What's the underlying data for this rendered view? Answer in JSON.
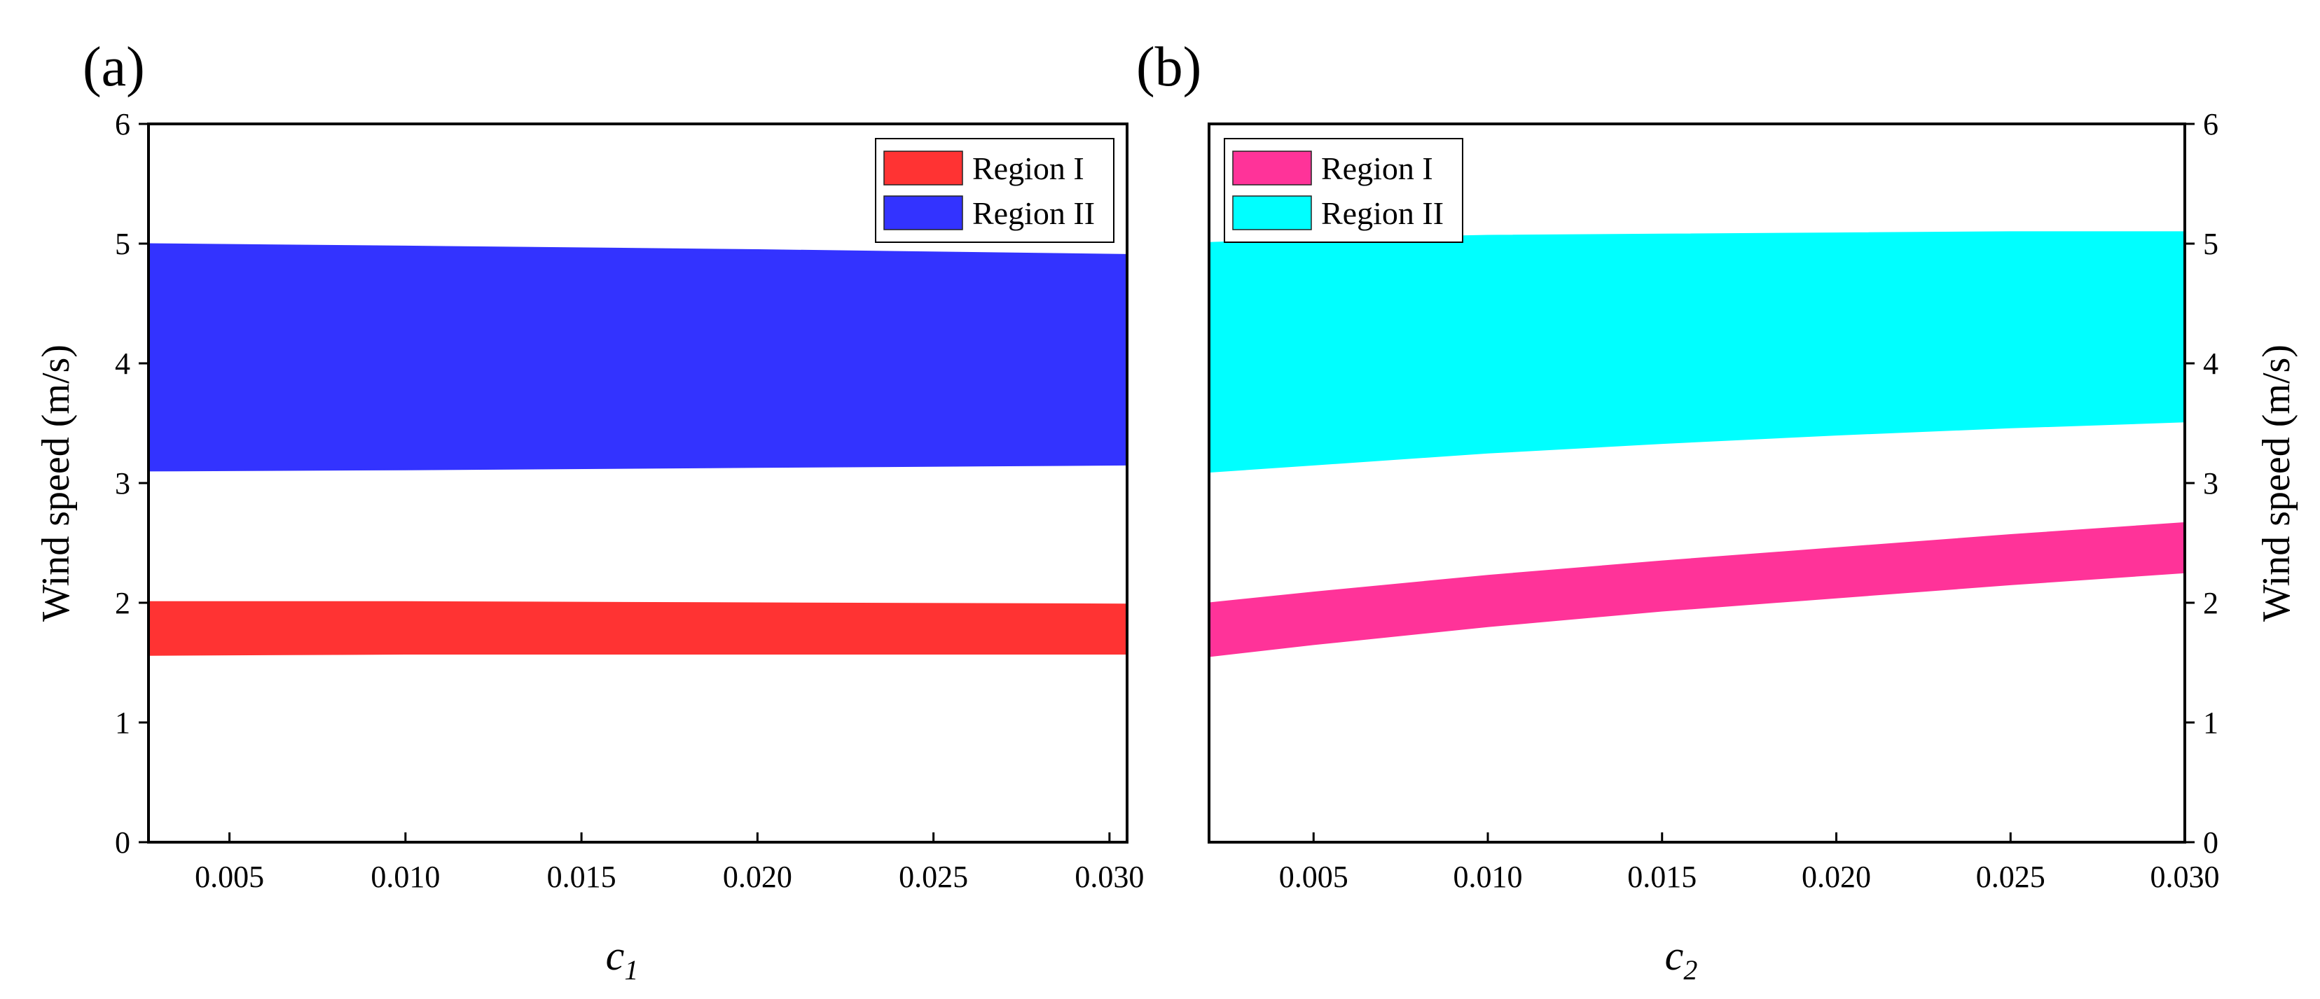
{
  "chart_data": [
    {
      "panel": "(a)",
      "type": "area",
      "xlabel": "c",
      "xlabel_sub": "1",
      "ylabel": "Wind speed (m/s)",
      "ylabel_side": "left",
      "xlim": [
        0.0027,
        0.0305
      ],
      "ylim": [
        0,
        6
      ],
      "xticks": [
        0.005,
        0.01,
        0.015,
        0.02,
        0.025,
        0.03
      ],
      "xtick_labels": [
        "0.005",
        "0.010",
        "0.015",
        "0.020",
        "0.025",
        "0.030"
      ],
      "yticks": [
        0,
        1,
        2,
        3,
        4,
        5,
        6
      ],
      "ytick_labels": [
        "0",
        "1",
        "2",
        "3",
        "4",
        "5",
        "6"
      ],
      "legend_position": "top-right",
      "series": [
        {
          "name": "Region I",
          "color": "#ff3333",
          "x": [
            0.0027,
            0.01,
            0.02,
            0.0305
          ],
          "lower": [
            1.56,
            1.57,
            1.57,
            1.57
          ],
          "upper": [
            2.01,
            2.01,
            2.0,
            1.99
          ]
        },
        {
          "name": "Region II",
          "color": "#3333ff",
          "x": [
            0.0027,
            0.01,
            0.02,
            0.0305
          ],
          "lower": [
            3.1,
            3.11,
            3.13,
            3.15
          ],
          "upper": [
            5.0,
            4.98,
            4.95,
            4.91
          ]
        }
      ]
    },
    {
      "panel": "(b)",
      "type": "area",
      "xlabel": "c",
      "xlabel_sub": "2",
      "ylabel": "Wind speed (m/s)",
      "ylabel_side": "right",
      "xlim": [
        0.002,
        0.03
      ],
      "ylim": [
        0,
        6
      ],
      "xticks": [
        0.005,
        0.01,
        0.015,
        0.02,
        0.025,
        0.03
      ],
      "xtick_labels": [
        "0.005",
        "0.010",
        "0.015",
        "0.020",
        "0.025",
        "0.030"
      ],
      "yticks": [
        0,
        1,
        2,
        3,
        4,
        5,
        6
      ],
      "ytick_labels": [
        "0",
        "1",
        "2",
        "3",
        "4",
        "5",
        "6"
      ],
      "legend_position": "top-left",
      "series": [
        {
          "name": "Region I",
          "color": "#ff3399",
          "x": [
            0.002,
            0.005,
            0.01,
            0.015,
            0.02,
            0.025,
            0.03
          ],
          "lower": [
            1.55,
            1.65,
            1.8,
            1.93,
            2.04,
            2.15,
            2.25
          ],
          "upper": [
            2.0,
            2.09,
            2.23,
            2.35,
            2.46,
            2.57,
            2.67
          ]
        },
        {
          "name": "Region II",
          "color": "#00ffff",
          "x": [
            0.002,
            0.005,
            0.01,
            0.015,
            0.02,
            0.025,
            0.03
          ],
          "lower": [
            3.09,
            3.15,
            3.25,
            3.33,
            3.4,
            3.46,
            3.51
          ],
          "upper": [
            5.01,
            5.04,
            5.07,
            5.08,
            5.09,
            5.1,
            5.1
          ]
        }
      ]
    }
  ]
}
